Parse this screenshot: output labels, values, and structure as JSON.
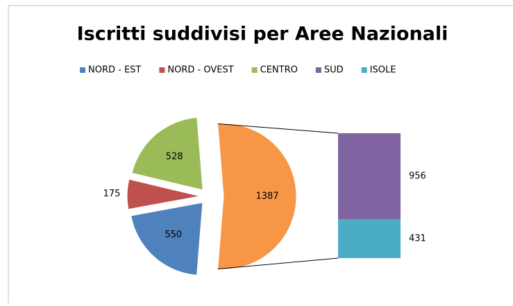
{
  "chart_data": {
    "type": "bar-of-pie",
    "title": "Iscritti suddivisi per Aree Nazionali",
    "categories": [
      "NORD - EST",
      "NORD - OVEST",
      "CENTRO",
      null
    ],
    "values": [
      550,
      175,
      528,
      1387
    ],
    "colors": [
      "#4f81bd",
      "#c0504d",
      "#9bbb59",
      "#f79646"
    ],
    "bar_categories": [
      "SUD",
      "ISOLE"
    ],
    "bar_values": [
      956,
      431
    ],
    "bar_colors": [
      "#8064a2",
      "#4bacc6"
    ],
    "legend": "top"
  }
}
